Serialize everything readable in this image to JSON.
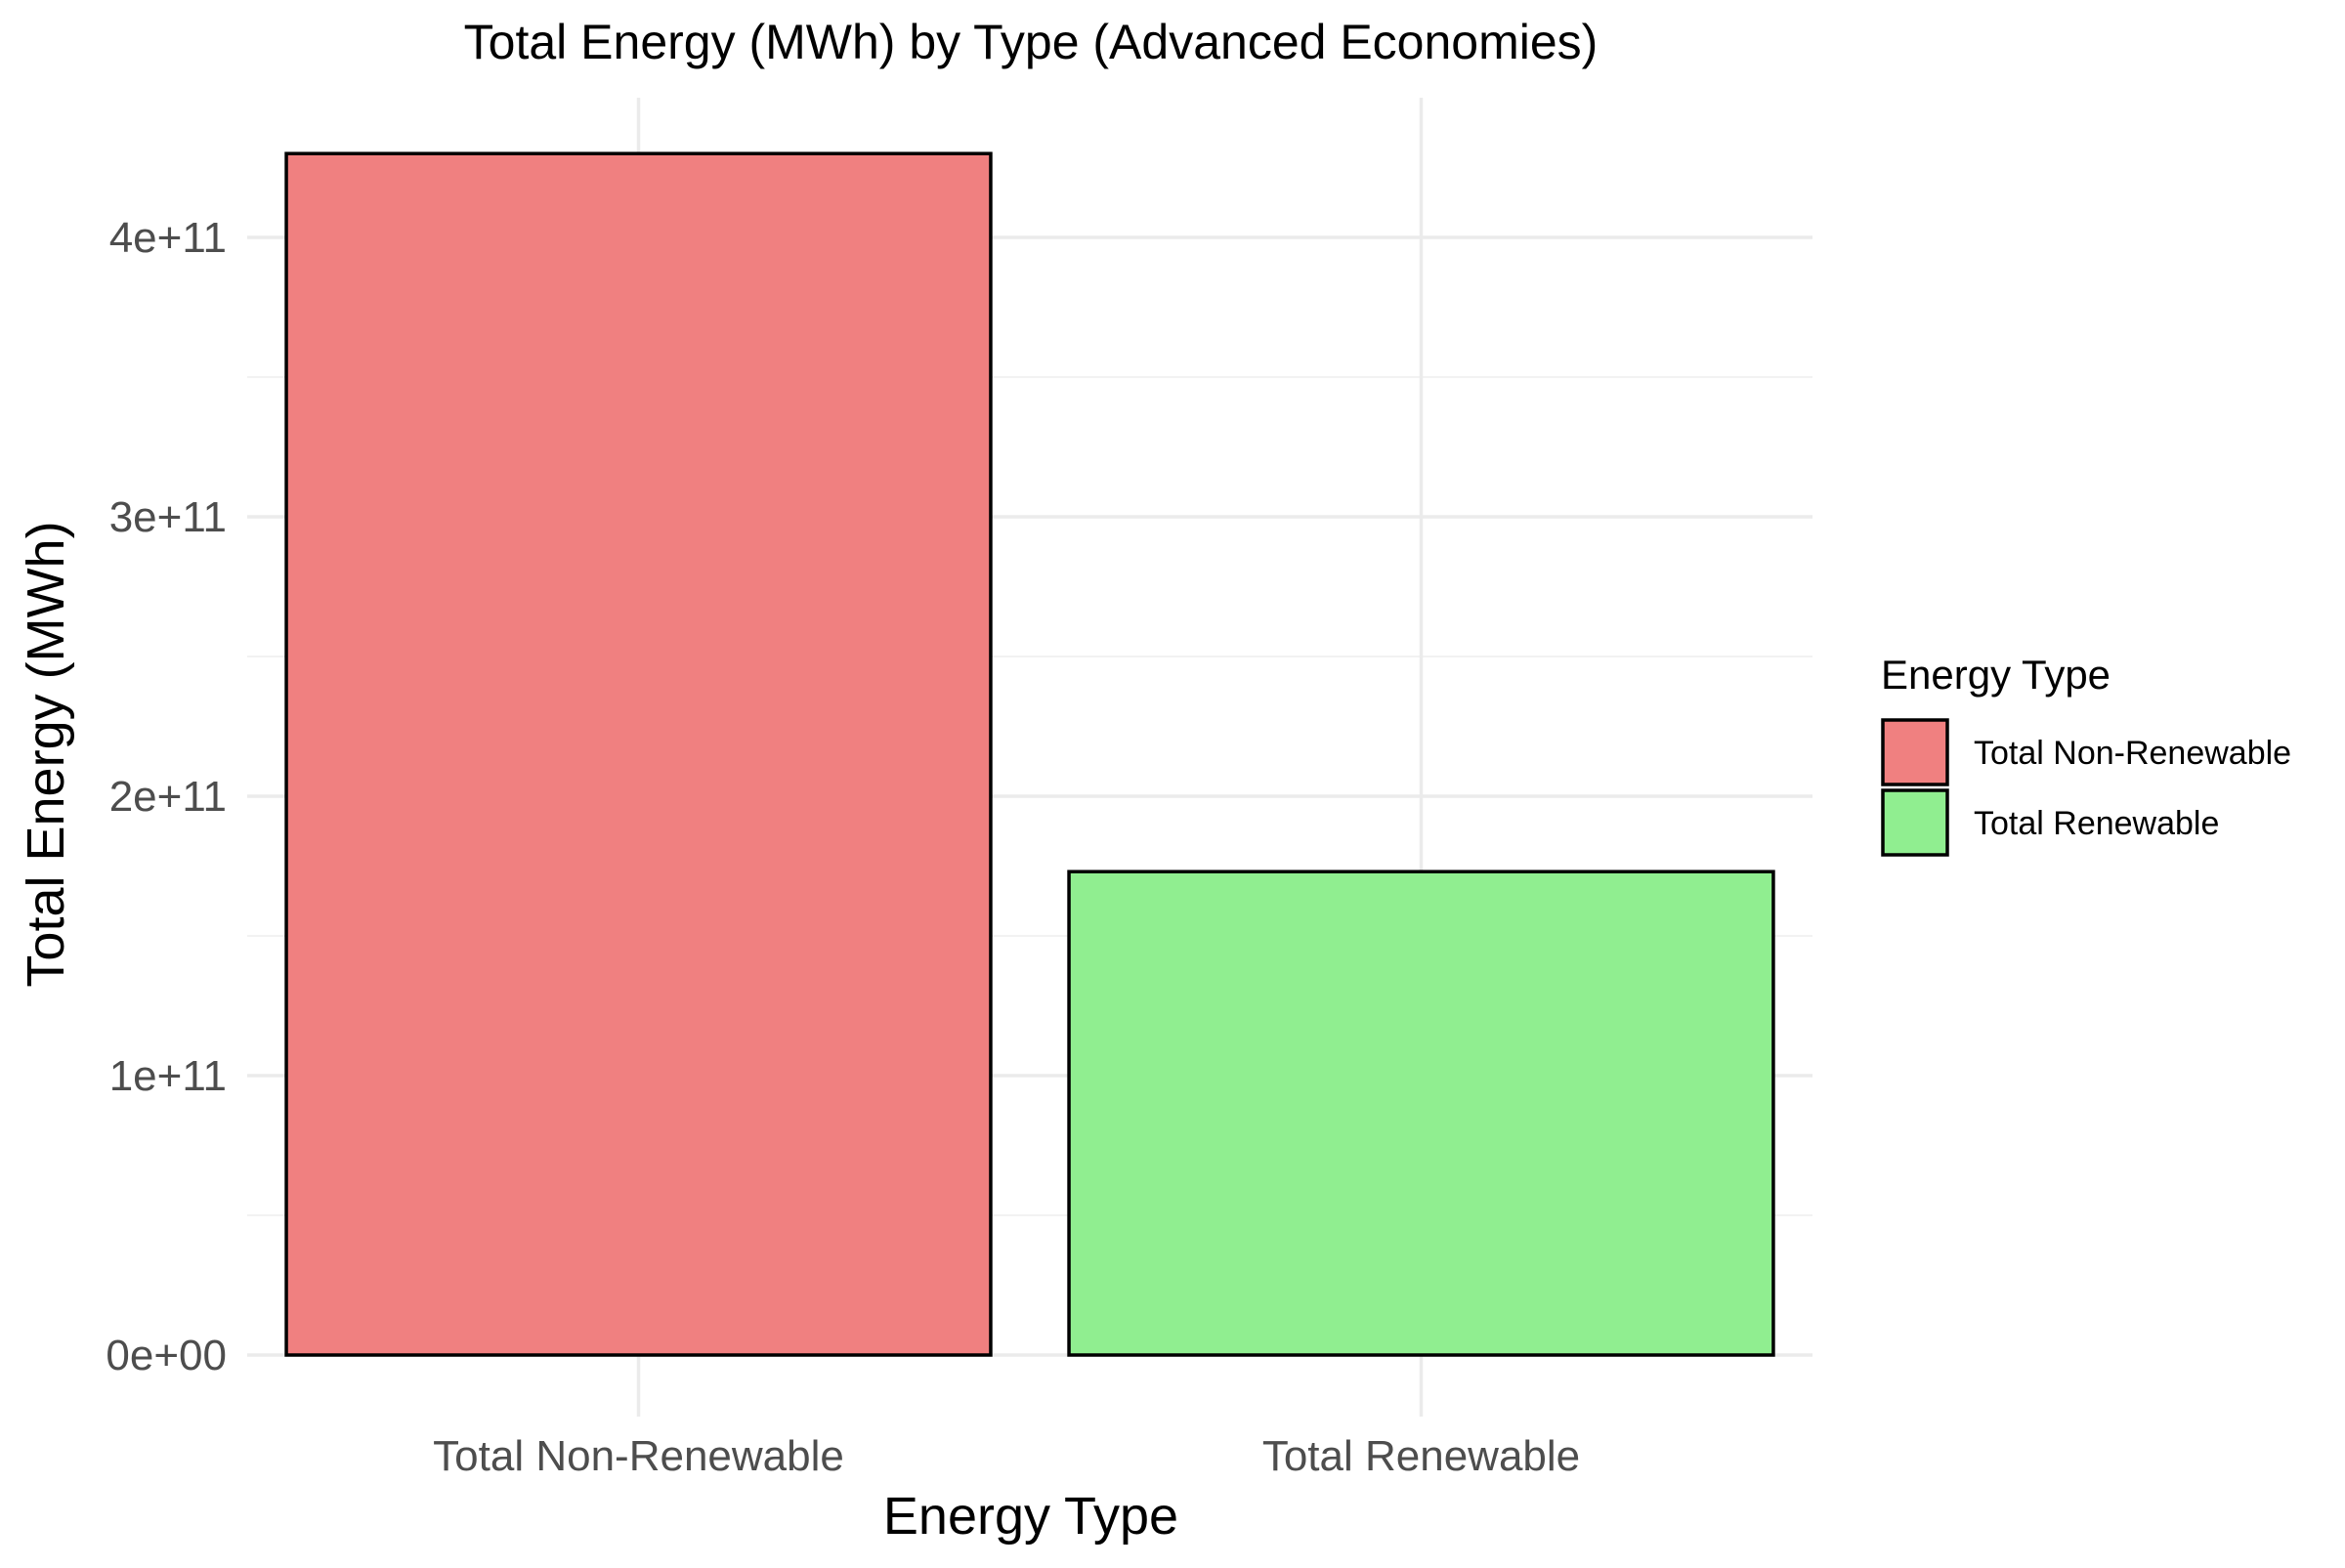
{
  "chart_data": {
    "type": "bar",
    "title": "Total Energy (MWh) by Type (Advanced Economies)",
    "xlabel": "Energy Type",
    "ylabel": "Total Energy (MWh)",
    "categories": [
      "Total Non-Renewable",
      "Total Renewable"
    ],
    "values": [
      430000000000,
      173000000000
    ],
    "colors": [
      "#f08080",
      "#90ee90"
    ],
    "outline_color": "#000000",
    "ylim": [
      0,
      440000000000
    ],
    "yticks": [
      0,
      100000000000,
      200000000000,
      300000000000,
      400000000000
    ],
    "ytick_labels": [
      "0e+00",
      "1e+11",
      "2e+11",
      "3e+11",
      "4e+11"
    ],
    "grid": true,
    "legend": {
      "title": "Energy Type",
      "position": "right",
      "entries": [
        "Total Non-Renewable",
        "Total Renewable"
      ]
    }
  }
}
